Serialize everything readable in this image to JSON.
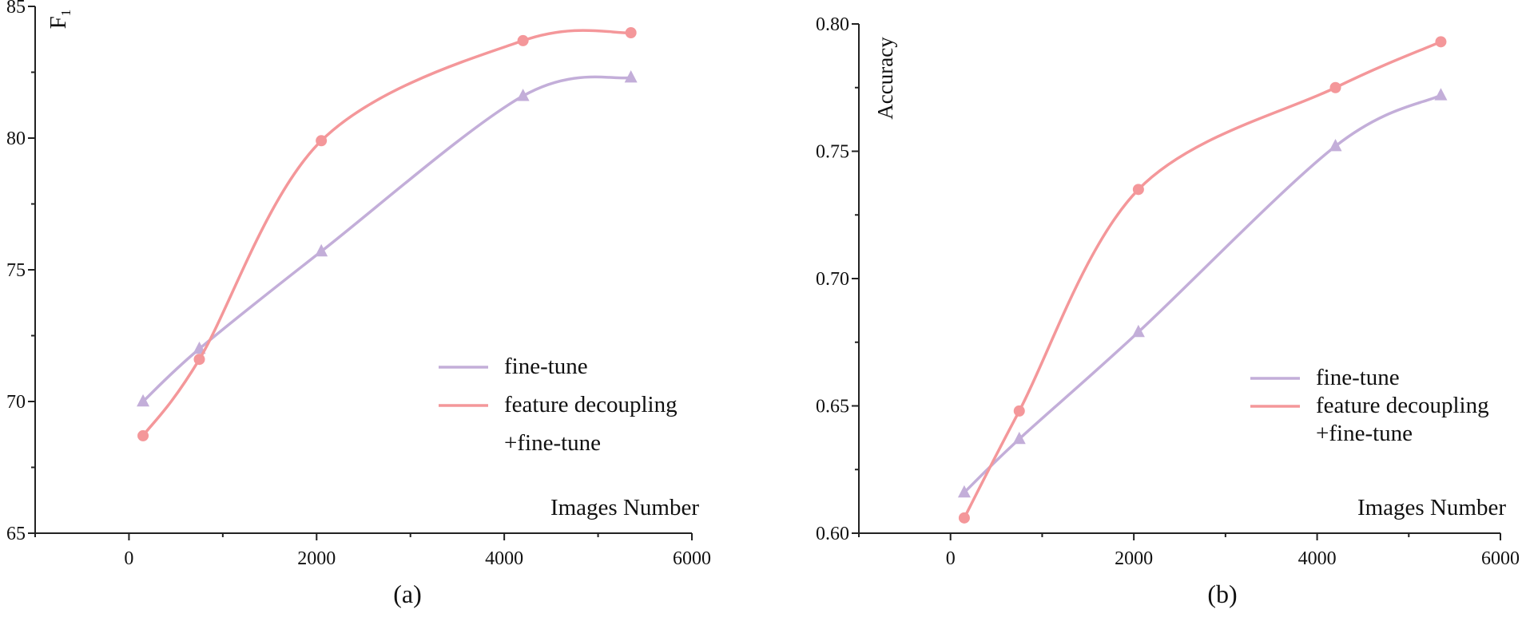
{
  "chart_data": [
    {
      "type": "line",
      "panel_label": "(a)",
      "title": "",
      "xlabel": "Images Number",
      "ylabel": "F",
      "ylabel_sub": "1",
      "xlim": [
        -1000,
        6000
      ],
      "ylim": [
        65,
        85
      ],
      "xticks": [
        0,
        2000,
        4000,
        6000
      ],
      "yticks": [
        65,
        70,
        75,
        80,
        85
      ],
      "ytick_decimals": 0,
      "grid": false,
      "legend_position": "right",
      "series": [
        {
          "name": "fine-tune",
          "color": "#c3aed9",
          "marker": "triangle",
          "x": [
            150,
            750,
            2050,
            4200,
            5350
          ],
          "y": [
            70.0,
            72.0,
            75.7,
            81.6,
            82.3
          ]
        },
        {
          "name": "feature decoupling +fine-tune",
          "color": "#f4979a",
          "marker": "circle",
          "x": [
            150,
            750,
            2050,
            4200,
            5350
          ],
          "y": [
            68.7,
            71.6,
            79.9,
            83.7,
            84.0
          ]
        }
      ],
      "legend": [
        {
          "series": 0,
          "lines": [
            "fine-tune"
          ]
        },
        {
          "series": 1,
          "lines": [
            "feature decoupling",
            "+fine-tune"
          ]
        }
      ]
    },
    {
      "type": "line",
      "panel_label": "(b)",
      "title": "",
      "xlabel": "Images Number",
      "ylabel": "Accuracy",
      "ylabel_sub": "",
      "xlim": [
        -1000,
        6000
      ],
      "ylim": [
        0.6,
        0.8
      ],
      "xticks": [
        0,
        2000,
        4000,
        6000
      ],
      "yticks": [
        0.6,
        0.65,
        0.7,
        0.75,
        0.8
      ],
      "ytick_decimals": 2,
      "grid": false,
      "legend_position": "right",
      "series": [
        {
          "name": "fine-tune",
          "color": "#c3aed9",
          "marker": "triangle",
          "x": [
            150,
            750,
            2050,
            4200,
            5350
          ],
          "y": [
            0.616,
            0.637,
            0.679,
            0.752,
            0.772
          ]
        },
        {
          "name": "feature decoupling +fine-tune",
          "color": "#f4979a",
          "marker": "circle",
          "x": [
            150,
            750,
            2050,
            4200,
            5350
          ],
          "y": [
            0.606,
            0.648,
            0.735,
            0.775,
            0.793
          ]
        }
      ],
      "legend": [
        {
          "series": 0,
          "lines": [
            "fine-tune"
          ]
        },
        {
          "series": 1,
          "lines": [
            "feature decoupling",
            "+fine-tune"
          ]
        }
      ]
    }
  ]
}
